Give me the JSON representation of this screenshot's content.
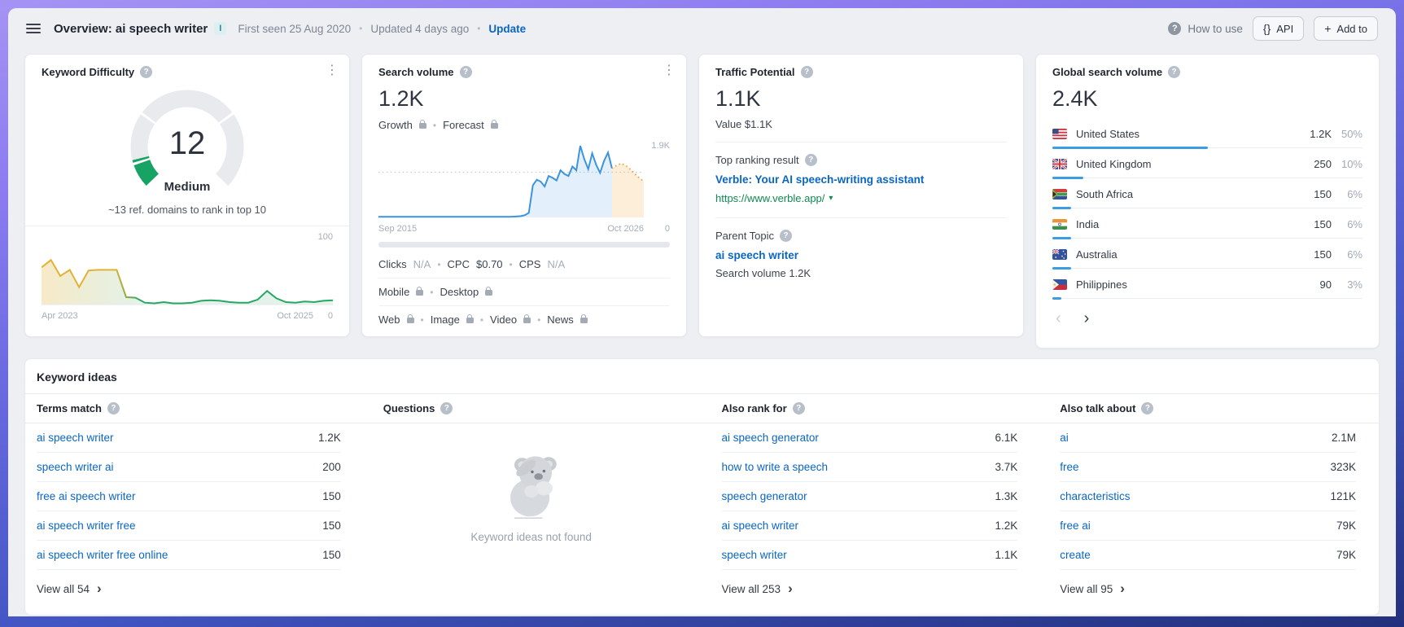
{
  "header": {
    "title": "Overview: ai speech writer",
    "badge": "I",
    "first_seen": "First seen 25 Aug 2020",
    "updated": "Updated 4 days ago",
    "update_link": "Update",
    "how_to_use": "How to use",
    "api_button": "API",
    "add_to_button": "Add to"
  },
  "cards": {
    "keyword_difficulty": {
      "title": "Keyword Difficulty",
      "score": "12",
      "level": "Medium",
      "hint": "~13 ref. domains to rank in top 10",
      "y_max": "100",
      "y_min": "0",
      "x_left": "Apr 2023",
      "x_right": "Oct 2025"
    },
    "search_volume": {
      "title": "Search volume",
      "value": "1.2K",
      "growth": "Growth",
      "forecast": "Forecast",
      "y_max": "1.9K",
      "y_min": "0",
      "x_left": "Sep 2015",
      "x_right": "Oct 2026",
      "clicks_label": "Clicks",
      "clicks_value": "N/A",
      "cpc_label": "CPC",
      "cpc_value": "$0.70",
      "cps_label": "CPS",
      "cps_value": "N/A",
      "mobile": "Mobile",
      "desktop": "Desktop",
      "web": "Web",
      "image": "Image",
      "video": "Video",
      "news": "News"
    },
    "traffic_potential": {
      "title": "Traffic Potential",
      "value": "1.1K",
      "value_line": "Value $1.1K",
      "top_label": "Top ranking result",
      "top_title": "Verble: Your AI speech-writing assistant",
      "top_url": "https://www.verble.app/",
      "parent_label": "Parent Topic",
      "parent_topic": "ai speech writer",
      "parent_volume": "Search volume 1.2K"
    },
    "global_volume": {
      "title": "Global search volume",
      "value": "2.4K",
      "countries": [
        {
          "name": "United States",
          "flag": "us",
          "volume": "1.2K",
          "percent": "50%",
          "share": 50
        },
        {
          "name": "United Kingdom",
          "flag": "gb",
          "volume": "250",
          "percent": "10%",
          "share": 10
        },
        {
          "name": "South Africa",
          "flag": "za",
          "volume": "150",
          "percent": "6%",
          "share": 6
        },
        {
          "name": "India",
          "flag": "in",
          "volume": "150",
          "percent": "6%",
          "share": 6
        },
        {
          "name": "Australia",
          "flag": "au",
          "volume": "150",
          "percent": "6%",
          "share": 6
        },
        {
          "name": "Philippines",
          "flag": "ph",
          "volume": "90",
          "percent": "3%",
          "share": 3
        }
      ]
    }
  },
  "keyword_ideas": {
    "title": "Keyword ideas",
    "columns": [
      {
        "header": "Terms match",
        "view_all": "View all 54",
        "rows": [
          {
            "keyword": "ai speech writer",
            "volume": "1.2K"
          },
          {
            "keyword": "speech writer ai",
            "volume": "200"
          },
          {
            "keyword": "free ai speech writer",
            "volume": "150"
          },
          {
            "keyword": "ai speech writer free",
            "volume": "150"
          },
          {
            "keyword": "ai speech writer free online",
            "volume": "150"
          }
        ]
      },
      {
        "header": "Questions",
        "empty_text": "Keyword ideas not found"
      },
      {
        "header": "Also rank for",
        "view_all": "View all 253",
        "rows": [
          {
            "keyword": "ai speech generator",
            "volume": "6.1K"
          },
          {
            "keyword": "how to write a speech",
            "volume": "3.7K"
          },
          {
            "keyword": "speech generator",
            "volume": "1.3K"
          },
          {
            "keyword": "ai speech writer",
            "volume": "1.2K"
          },
          {
            "keyword": "speech writer",
            "volume": "1.1K"
          }
        ]
      },
      {
        "header": "Also talk about",
        "view_all": "View all 95",
        "rows": [
          {
            "keyword": "ai",
            "volume": "2.1M"
          },
          {
            "keyword": "free",
            "volume": "323K"
          },
          {
            "keyword": "characteristics",
            "volume": "121K"
          },
          {
            "keyword": "free ai",
            "volume": "79K"
          },
          {
            "keyword": "create",
            "volume": "79K"
          }
        ]
      }
    ]
  },
  "chart_data": [
    {
      "id": "kd_gauge",
      "type": "gauge",
      "title": "Keyword Difficulty",
      "value": 12,
      "max": 100,
      "label": "Medium",
      "segments": [
        10,
        30,
        70,
        100
      ],
      "color": "#17a364"
    },
    {
      "id": "kd_trend",
      "type": "area",
      "title": "Keyword Difficulty history",
      "xlabel_left": "Apr 2023",
      "xlabel_right": "Oct 2025",
      "ylim": [
        0,
        100
      ],
      "values": [
        60,
        72,
        46,
        56,
        28,
        55,
        56,
        56,
        56,
        12,
        11,
        3,
        2,
        4,
        2,
        2,
        3,
        6,
        7,
        6,
        4,
        3,
        3,
        8,
        22,
        10,
        4,
        3,
        5,
        4,
        6,
        7
      ]
    },
    {
      "id": "sv_history",
      "type": "line",
      "title": "Search volume history and forecast",
      "xlabel_left": "Sep 2015",
      "xlabel_right": "Oct 2026",
      "ylim": [
        0,
        1900
      ],
      "gridline_at": 1200,
      "history_fraction": 0.88,
      "series": [
        {
          "name": "history",
          "values": [
            15,
            15,
            15,
            15,
            15,
            15,
            15,
            15,
            15,
            15,
            15,
            15,
            15,
            15,
            15,
            15,
            15,
            15,
            15,
            15,
            15,
            15,
            15,
            15,
            15,
            15,
            15,
            15,
            15,
            15,
            15,
            15,
            15,
            15,
            20,
            25,
            35,
            60,
            120,
            850,
            1000,
            950,
            820,
            1100,
            1050,
            980,
            1250,
            1150,
            1100,
            1350,
            1250,
            1900,
            1550,
            1280,
            1700,
            1400,
            1180,
            1500,
            1720,
            1300
          ]
        },
        {
          "name": "forecast",
          "values": [
            1300,
            1380,
            1430,
            1380,
            1280,
            1160,
            1050,
            960
          ],
          "style": "dotted"
        }
      ]
    },
    {
      "id": "global_share",
      "type": "bar",
      "title": "Global search volume share (%)",
      "categories": [
        "United States",
        "United Kingdom",
        "South Africa",
        "India",
        "Australia",
        "Philippines"
      ],
      "values": [
        50,
        10,
        6,
        6,
        6,
        3
      ]
    }
  ]
}
